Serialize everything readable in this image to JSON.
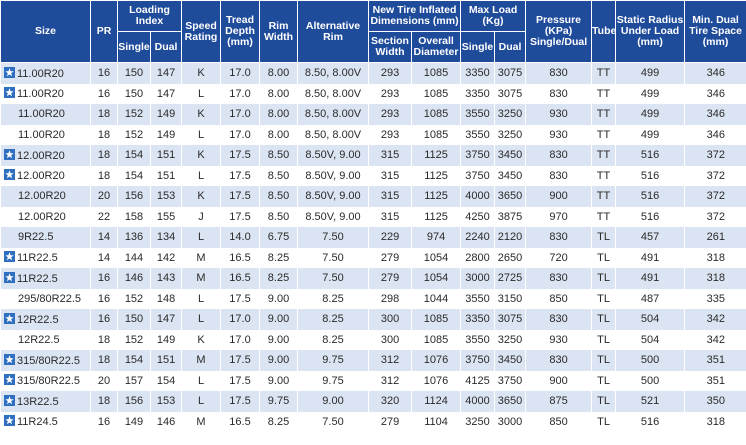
{
  "header": {
    "top": [
      "Size",
      "PR",
      "Loading\nIndex",
      "Speed\nRating",
      "Tread\nDepth\n(mm)",
      "Rim\nWidth",
      "Alternative\nRim",
      "New Tire Inflated\nDimensions (mm)",
      "Max Load\n(Kg)",
      "Pressure\n(KPa)\nSingle/Dual",
      "Tube",
      "Static Radius\nUnder Load\n(mm)",
      "Min. Dual\nTire Space\n(mm)"
    ],
    "sub": [
      "Single",
      "Dual",
      "Section\nWidth",
      "Overall\nDiameter",
      "Single",
      "Dual"
    ]
  },
  "table": {
    "rows": [
      {
        "marked": true,
        "cells": [
          "11.00R20",
          "16",
          "150",
          "147",
          "K",
          "17.0",
          "8.00",
          "8.50, 8.00V",
          "293",
          "1085",
          "3350",
          "3075",
          "830",
          "TT",
          "499",
          "346"
        ]
      },
      {
        "marked": true,
        "cells": [
          "11.00R20",
          "16",
          "150",
          "147",
          "L",
          "17.0",
          "8.00",
          "8.50, 8.00V",
          "293",
          "1085",
          "3350",
          "3075",
          "830",
          "TT",
          "499",
          "346"
        ]
      },
      {
        "marked": false,
        "cells": [
          "11.00R20",
          "18",
          "152",
          "149",
          "K",
          "17.0",
          "8.00",
          "8.50, 8.00V",
          "293",
          "1085",
          "3550",
          "3250",
          "930",
          "TT",
          "499",
          "346"
        ]
      },
      {
        "marked": false,
        "cells": [
          "11.00R20",
          "18",
          "152",
          "149",
          "L",
          "17.0",
          "8.00",
          "8.50, 8.00V",
          "293",
          "1085",
          "3550",
          "3250",
          "930",
          "TT",
          "499",
          "346"
        ]
      },
      {
        "marked": true,
        "cells": [
          "12.00R20",
          "18",
          "154",
          "151",
          "K",
          "17.5",
          "8.50",
          "8.50V, 9.00",
          "315",
          "1125",
          "3750",
          "3450",
          "830",
          "TT",
          "516",
          "372"
        ]
      },
      {
        "marked": true,
        "cells": [
          "12.00R20",
          "18",
          "154",
          "151",
          "L",
          "17.5",
          "8.50",
          "8.50V, 9.00",
          "315",
          "1125",
          "3750",
          "3450",
          "830",
          "TT",
          "516",
          "372"
        ]
      },
      {
        "marked": false,
        "cells": [
          "12.00R20",
          "20",
          "156",
          "153",
          "K",
          "17.5",
          "8.50",
          "8.50V, 9.00",
          "315",
          "1125",
          "4000",
          "3650",
          "900",
          "TT",
          "516",
          "372"
        ]
      },
      {
        "marked": false,
        "cells": [
          "12.00R20",
          "22",
          "158",
          "155",
          "J",
          "17.5",
          "8.50",
          "8.50V, 9.00",
          "315",
          "1125",
          "4250",
          "3875",
          "970",
          "TT",
          "516",
          "372"
        ]
      },
      {
        "marked": false,
        "cells": [
          "9R22.5",
          "14",
          "136",
          "134",
          "L",
          "14.0",
          "6.75",
          "7.50",
          "229",
          "974",
          "2240",
          "2120",
          "830",
          "TL",
          "457",
          "261"
        ]
      },
      {
        "marked": true,
        "cells": [
          "11R22.5",
          "14",
          "144",
          "142",
          "M",
          "16.5",
          "8.25",
          "7.50",
          "279",
          "1054",
          "2800",
          "2650",
          "720",
          "TL",
          "491",
          "318"
        ]
      },
      {
        "marked": true,
        "cells": [
          "11R22.5",
          "16",
          "146",
          "143",
          "M",
          "16.5",
          "8.25",
          "7.50",
          "279",
          "1054",
          "3000",
          "2725",
          "830",
          "TL",
          "491",
          "318"
        ]
      },
      {
        "marked": false,
        "cells": [
          "295/80R22.5",
          "16",
          "152",
          "148",
          "L",
          "17.5",
          "9.00",
          "8.25",
          "298",
          "1044",
          "3550",
          "3150",
          "850",
          "TL",
          "487",
          "335"
        ]
      },
      {
        "marked": true,
        "cells": [
          "12R22.5",
          "16",
          "150",
          "147",
          "L",
          "17.0",
          "9.00",
          "8.25",
          "300",
          "1085",
          "3350",
          "3075",
          "830",
          "TL",
          "504",
          "342"
        ]
      },
      {
        "marked": false,
        "cells": [
          "12R22.5",
          "18",
          "152",
          "149",
          "K",
          "17.0",
          "9.00",
          "8.25",
          "300",
          "1085",
          "3550",
          "3250",
          "930",
          "TL",
          "504",
          "342"
        ]
      },
      {
        "marked": true,
        "cells": [
          "315/80R22.5",
          "18",
          "154",
          "151",
          "M",
          "17.5",
          "9.00",
          "9.75",
          "312",
          "1076",
          "3750",
          "3450",
          "830",
          "TL",
          "500",
          "351"
        ]
      },
      {
        "marked": true,
        "cells": [
          "315/80R22.5",
          "20",
          "157",
          "154",
          "L",
          "17.5",
          "9.00",
          "9.75",
          "312",
          "1076",
          "4125",
          "3750",
          "900",
          "TL",
          "500",
          "351"
        ]
      },
      {
        "marked": true,
        "cells": [
          "13R22.5",
          "18",
          "156",
          "153",
          "L",
          "17.5",
          "9.75",
          "9.00",
          "320",
          "1124",
          "4000",
          "3650",
          "875",
          "TL",
          "521",
          "350"
        ]
      },
      {
        "marked": true,
        "cells": [
          "11R24.5",
          "16",
          "149",
          "146",
          "M",
          "16.5",
          "8.25",
          "7.50",
          "279",
          "1104",
          "3250",
          "3000",
          "850",
          "TL",
          "516",
          "318"
        ]
      }
    ]
  }
}
